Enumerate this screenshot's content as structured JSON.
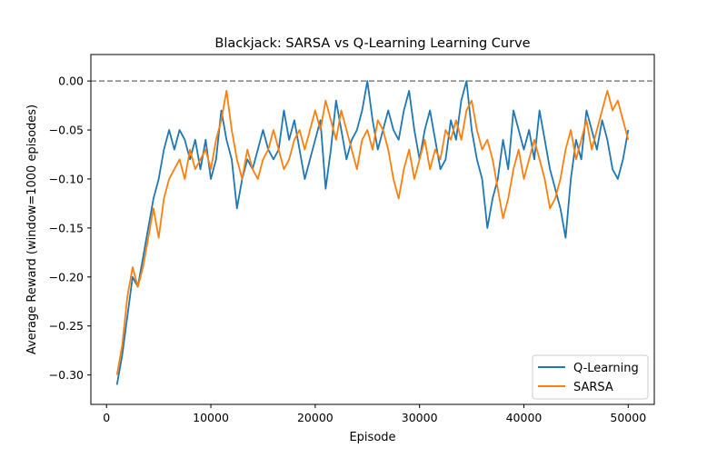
{
  "chart_data": {
    "type": "line",
    "title": "Blackjack: SARSA vs Q-Learning Learning Curve",
    "xlabel": "Episode",
    "ylabel": "Average Reward (window=1000 episodes)",
    "xlim": [
      -1500,
      52500
    ],
    "ylim": [
      -0.33,
      0.027
    ],
    "xticks": [
      0,
      10000,
      20000,
      30000,
      40000,
      50000
    ],
    "xtick_labels": [
      "0",
      "10000",
      "20000",
      "30000",
      "40000",
      "50000"
    ],
    "yticks": [
      -0.3,
      -0.25,
      -0.2,
      -0.15,
      -0.1,
      -0.05,
      0.0
    ],
    "ytick_labels": [
      "−0.30",
      "−0.25",
      "−0.20",
      "−0.15",
      "−0.10",
      "−0.05",
      "0.00"
    ],
    "reference_line": {
      "y": 0.0,
      "style": "dashed",
      "color": "#808080"
    },
    "grid": false,
    "legend_position": "lower right",
    "series": [
      {
        "name": "Q-Learning",
        "color": "#1f77b4",
        "x": [
          1000,
          1500,
          2000,
          2500,
          3000,
          3500,
          4000,
          4500,
          5000,
          5500,
          6000,
          6500,
          7000,
          7500,
          8000,
          8500,
          9000,
          9500,
          10000,
          10500,
          11000,
          11500,
          12000,
          12500,
          13000,
          13500,
          14000,
          14500,
          15000,
          15500,
          16000,
          16500,
          17000,
          17500,
          18000,
          18500,
          19000,
          19500,
          20000,
          20500,
          21000,
          21500,
          22000,
          22500,
          23000,
          23500,
          24000,
          24500,
          25000,
          25500,
          26000,
          26500,
          27000,
          27500,
          28000,
          28500,
          29000,
          29500,
          30000,
          30500,
          31000,
          31500,
          32000,
          32500,
          33000,
          33500,
          34000,
          34500,
          35000,
          35500,
          36000,
          36500,
          37000,
          37500,
          38000,
          38500,
          39000,
          39500,
          40000,
          40500,
          41000,
          41500,
          42000,
          42500,
          43000,
          43500,
          44000,
          44500,
          45000,
          45500,
          46000,
          46500,
          47000,
          47500,
          48000,
          48500,
          49000,
          49500,
          50000
        ],
        "values": [
          -0.31,
          -0.28,
          -0.24,
          -0.2,
          -0.21,
          -0.18,
          -0.15,
          -0.12,
          -0.1,
          -0.07,
          -0.05,
          -0.07,
          -0.05,
          -0.06,
          -0.08,
          -0.06,
          -0.09,
          -0.06,
          -0.1,
          -0.08,
          -0.03,
          -0.06,
          -0.08,
          -0.13,
          -0.1,
          -0.08,
          -0.09,
          -0.07,
          -0.05,
          -0.07,
          -0.08,
          -0.07,
          -0.03,
          -0.06,
          -0.04,
          -0.07,
          -0.1,
          -0.08,
          -0.06,
          -0.04,
          -0.11,
          -0.07,
          -0.02,
          -0.05,
          -0.08,
          -0.06,
          -0.05,
          -0.03,
          0.0,
          -0.04,
          -0.07,
          -0.05,
          -0.03,
          -0.05,
          -0.06,
          -0.03,
          -0.01,
          -0.05,
          -0.08,
          -0.05,
          -0.03,
          -0.06,
          -0.09,
          -0.08,
          -0.04,
          -0.06,
          -0.02,
          0.0,
          -0.05,
          -0.08,
          -0.1,
          -0.15,
          -0.12,
          -0.1,
          -0.06,
          -0.09,
          -0.03,
          -0.05,
          -0.07,
          -0.05,
          -0.08,
          -0.03,
          -0.06,
          -0.09,
          -0.11,
          -0.13,
          -0.16,
          -0.1,
          -0.06,
          -0.08,
          -0.03,
          -0.05,
          -0.07,
          -0.04,
          -0.06,
          -0.09,
          -0.1,
          -0.08,
          -0.05
        ]
      },
      {
        "name": "SARSA",
        "color": "#ff7f0e",
        "x": [
          1000,
          1500,
          2000,
          2500,
          3000,
          3500,
          4000,
          4500,
          5000,
          5500,
          6000,
          6500,
          7000,
          7500,
          8000,
          8500,
          9000,
          9500,
          10000,
          10500,
          11000,
          11500,
          12000,
          12500,
          13000,
          13500,
          14000,
          14500,
          15000,
          15500,
          16000,
          16500,
          17000,
          17500,
          18000,
          18500,
          19000,
          19500,
          20000,
          20500,
          21000,
          21500,
          22000,
          22500,
          23000,
          23500,
          24000,
          24500,
          25000,
          25500,
          26000,
          26500,
          27000,
          27500,
          28000,
          28500,
          29000,
          29500,
          30000,
          30500,
          31000,
          31500,
          32000,
          32500,
          33000,
          33500,
          34000,
          34500,
          35000,
          35500,
          36000,
          36500,
          37000,
          37500,
          38000,
          38500,
          39000,
          39500,
          40000,
          40500,
          41000,
          41500,
          42000,
          42500,
          43000,
          43500,
          44000,
          44500,
          45000,
          45500,
          46000,
          46500,
          47000,
          47500,
          48000,
          48500,
          49000,
          49500,
          50000
        ],
        "values": [
          -0.3,
          -0.27,
          -0.22,
          -0.19,
          -0.21,
          -0.19,
          -0.16,
          -0.13,
          -0.16,
          -0.12,
          -0.1,
          -0.09,
          -0.08,
          -0.1,
          -0.07,
          -0.09,
          -0.08,
          -0.07,
          -0.09,
          -0.06,
          -0.04,
          -0.01,
          -0.05,
          -0.08,
          -0.1,
          -0.07,
          -0.09,
          -0.1,
          -0.08,
          -0.07,
          -0.05,
          -0.07,
          -0.09,
          -0.08,
          -0.06,
          -0.05,
          -0.07,
          -0.05,
          -0.03,
          -0.05,
          -0.02,
          -0.04,
          -0.06,
          -0.03,
          -0.05,
          -0.07,
          -0.09,
          -0.06,
          -0.05,
          -0.07,
          -0.04,
          -0.05,
          -0.07,
          -0.1,
          -0.12,
          -0.09,
          -0.07,
          -0.1,
          -0.08,
          -0.06,
          -0.09,
          -0.07,
          -0.08,
          -0.05,
          -0.06,
          -0.04,
          -0.06,
          -0.03,
          -0.02,
          -0.05,
          -0.07,
          -0.06,
          -0.08,
          -0.11,
          -0.14,
          -0.12,
          -0.09,
          -0.07,
          -0.1,
          -0.08,
          -0.06,
          -0.08,
          -0.1,
          -0.13,
          -0.12,
          -0.1,
          -0.07,
          -0.05,
          -0.08,
          -0.06,
          -0.04,
          -0.07,
          -0.05,
          -0.03,
          -0.01,
          -0.03,
          -0.02,
          -0.04,
          -0.06
        ]
      }
    ]
  }
}
